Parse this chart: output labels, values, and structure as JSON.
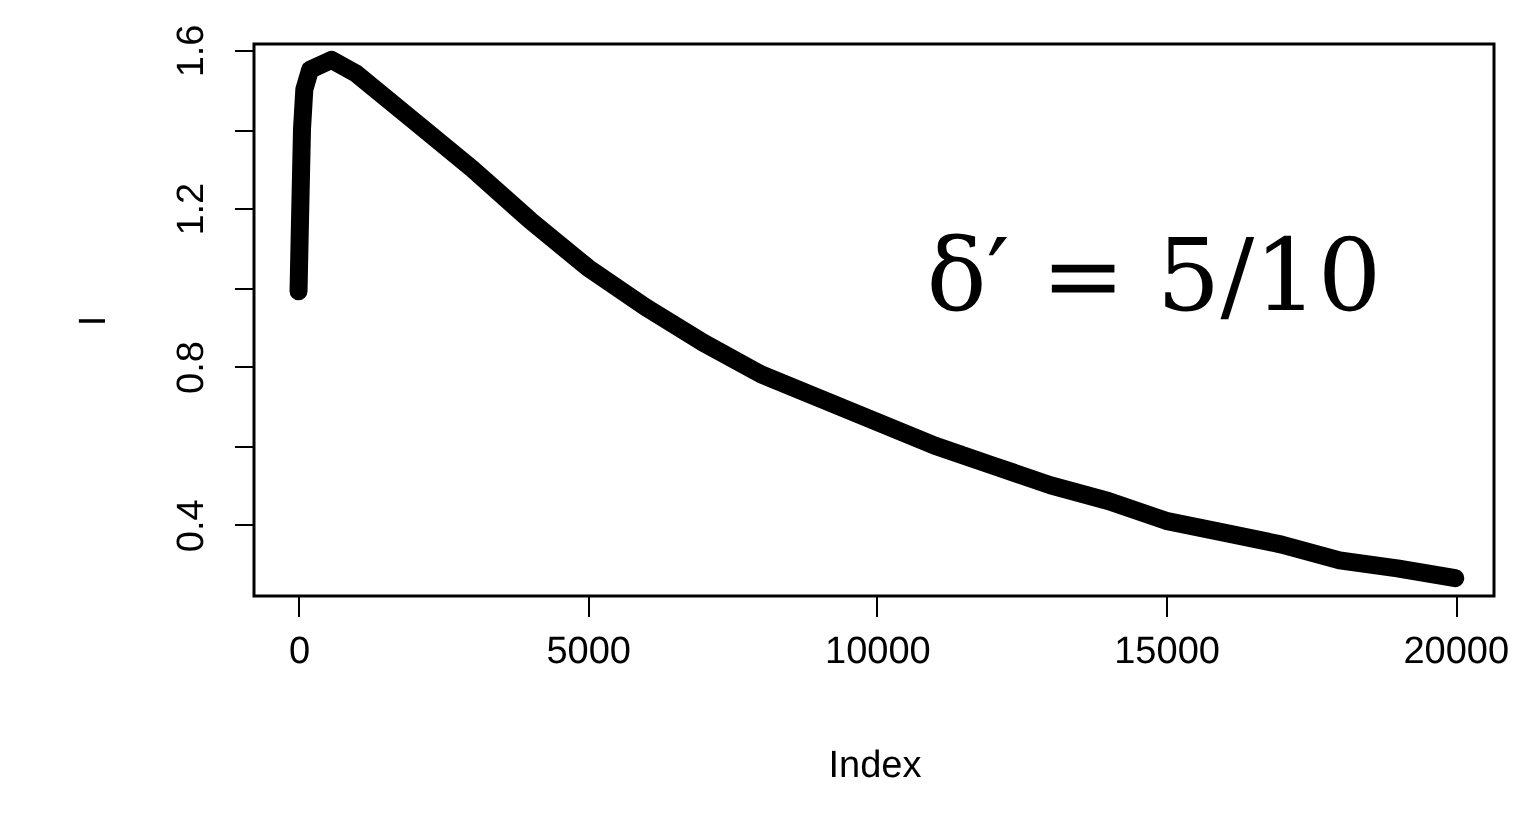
{
  "chart_data": {
    "type": "line",
    "xlabel": "Index",
    "ylabel": "I",
    "x": [
      0,
      30,
      60,
      100,
      200,
      570,
      1000,
      2000,
      3000,
      4000,
      5000,
      6000,
      7000,
      8000,
      9000,
      10000,
      11000,
      12000,
      13000,
      14000,
      15000,
      16000,
      17000,
      18000,
      19000,
      20000
    ],
    "series": [
      {
        "color": "#000000",
        "values": [
          0.99,
          1.2,
          1.4,
          1.5,
          1.55,
          1.575,
          1.54,
          1.42,
          1.3,
          1.17,
          1.05,
          0.95,
          0.86,
          0.78,
          0.72,
          0.66,
          0.6,
          0.55,
          0.5,
          0.46,
          0.41,
          0.38,
          0.35,
          0.31,
          0.29,
          0.265
        ]
      }
    ],
    "xlim": [
      -770,
      20670
    ],
    "ylim": [
      0.22,
      1.615
    ],
    "xticks": [
      0,
      5000,
      10000,
      15000,
      20000
    ],
    "yticks": [
      0.4,
      {
        "value": 0.6,
        "label": null
      },
      0.8,
      {
        "value": 1.0,
        "label": null
      },
      1.2,
      {
        "value": 1.4,
        "label": null
      },
      1.6
    ],
    "annotations": [
      "δ′ = 5/10"
    ],
    "grid": false,
    "line_style": "solid"
  }
}
